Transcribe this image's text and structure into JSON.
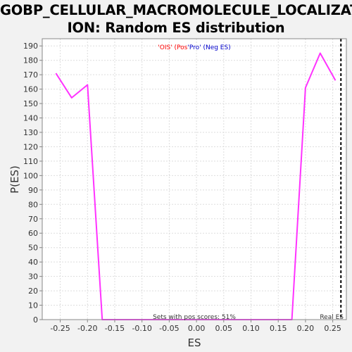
{
  "chart_data": {
    "type": "line",
    "title_line1": "GOBP_CELLULAR_MACROMOLECULE_LOCALIZAT",
    "title_line2": "ION: Random ES distribution",
    "xlabel": "ES",
    "ylabel": "P(ES)",
    "xlim": [
      -0.283,
      0.275
    ],
    "ylim": [
      0,
      195
    ],
    "x_ticks": [
      -0.25,
      -0.2,
      -0.15,
      -0.1,
      -0.05,
      0.0,
      0.05,
      0.1,
      0.15,
      0.2,
      0.25
    ],
    "x_tick_labels": [
      "-0.25",
      "-0.20",
      "-0.15",
      "-0.10",
      "-0.05",
      "0.00",
      "0.05",
      "0.10",
      "0.15",
      "0.20",
      "0.25"
    ],
    "y_ticks": [
      0,
      10,
      20,
      30,
      40,
      50,
      60,
      70,
      80,
      90,
      100,
      110,
      120,
      130,
      140,
      150,
      160,
      170,
      180,
      190
    ],
    "grid": true,
    "series": [
      {
        "color": "#ff33ff",
        "x": [
          -0.258,
          -0.229,
          -0.2,
          -0.173,
          0.175,
          0.2,
          0.227,
          0.255
        ],
        "y": [
          171,
          154,
          163,
          0,
          0,
          161,
          185,
          166
        ]
      }
    ],
    "real_es": {
      "x": 0.265,
      "label": "Real ES",
      "color": "#000000"
    },
    "legend": {
      "part1": "'OIS' (Pos",
      "part2": "'Pro' (Neg ES)",
      "part1_color": "#ff0000",
      "part2_color": "#0000cc",
      "placement": "top-center"
    },
    "annotation": "Sets with pos scores: 51%"
  }
}
